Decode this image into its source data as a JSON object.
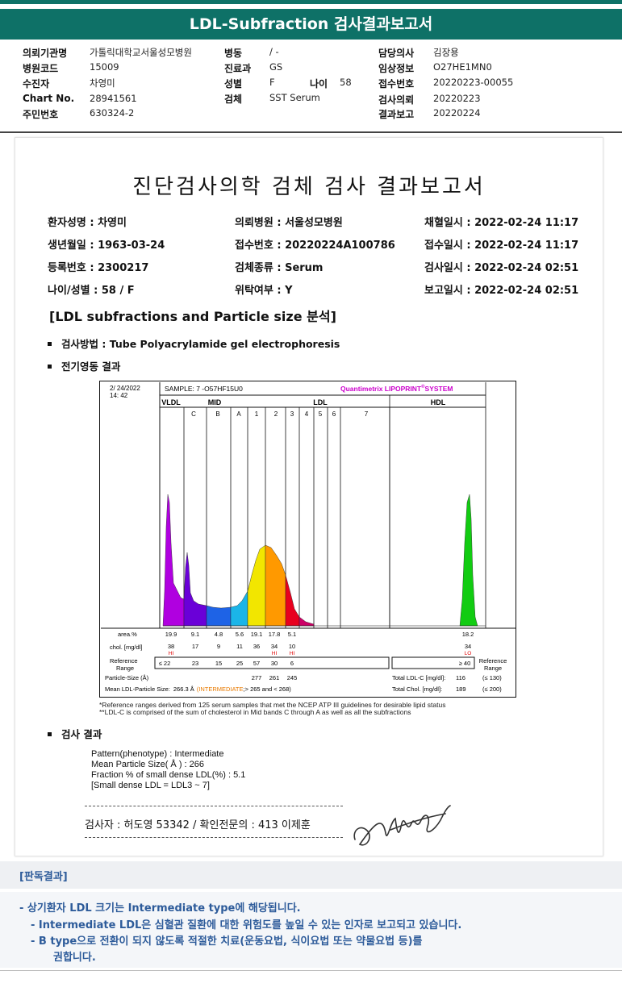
{
  "header": {
    "title": "LDL-Subfraction 검사결과보고서"
  },
  "info": {
    "req_inst_label": "의뢰기관명",
    "req_inst": "가톨릭대학교서울성모병원",
    "hosp_code_label": "병원코드",
    "hosp_code": "15009",
    "patient_label": "수진자",
    "patient": "차영미",
    "chart_label": "Chart No.",
    "chart_no": "28941561",
    "rrn_label": "주민번호",
    "rrn": "630324-2",
    "ward_label": "병동",
    "ward": "/ -",
    "dept_label": "진료과",
    "dept": "GS",
    "sex_label": "성별",
    "sex": "F",
    "age_label": "나이",
    "age": "58",
    "specimen_label": "검체",
    "specimen": "SST Serum",
    "doctor_label": "담당의사",
    "doctor": "김장용",
    "clinical_label": "임상정보",
    "clinical": "O27HE1MN0",
    "receipt_label": "접수번호",
    "receipt": "20220223-00055",
    "req_date_label": "검사의뢰",
    "req_date": "20220223",
    "report_date_label": "결과보고",
    "report_date": "20220224"
  },
  "report": {
    "title": "진단검사의학 검체 검사 결과보고서",
    "fields": {
      "name": "환자성명 : 차영미",
      "dob": "생년월일 : 1963-03-24",
      "reg": "등록번호 : 2300217",
      "agesex": "나이/성별 : 58 / F",
      "hospital": "의뢰병원 : 서울성모병원",
      "accession": "접수번호 : 20220224A100786",
      "specimen": "검체종류 : Serum",
      "outsourced": "위탁여부 : Y",
      "collected": "채혈일시 : 2022-02-24 11:17",
      "received": "접수일시 : 2022-02-24 11:17",
      "tested": "검사일시 : 2022-02-24 02:51",
      "reported": "보고일시 : 2022-02-24 02:51"
    },
    "section_title": "[LDL subfractions and Particle size 분석]",
    "method": "검사방법 : Tube Polyacrylamide gel electrophoresis",
    "electro_label": "전기영동 결과",
    "footnote1": "*Reference ranges derived from 125 serum samples that met the NCEP ATP III guidelines for desirable lipid status",
    "footnote2": "**LDL-C is comprised of the sum of cholesterol in Mid bands C through A as well as all the subfractions",
    "result_label": "검사 결과",
    "result_lines": [
      "Pattern(phenotype) : Intermediate",
      "Mean Particle Size( Å ) : 266",
      "Fraction % of small dense LDL(%) : 5.1",
      "[Small dense LDL = LDL3 ~ 7]"
    ],
    "signer": "검사자 : 허도영  53342  /  확인전문의 : 413  이제훈"
  },
  "chart_data": {
    "type": "area",
    "date": "2/ 24/2022",
    "time": "14: 42",
    "sample": "SAMPLE:   7 -O57HF15U0",
    "brand": "Quantimetrix LIPOPRINT",
    "brand_reg": "®",
    "brand_tail": "SYSTEM",
    "regions": [
      "VLDL",
      "MID",
      "LDL",
      "HDL"
    ],
    "bands": [
      "C",
      "B",
      "A",
      "1",
      "2",
      "3",
      "4",
      "5",
      "6",
      "7"
    ],
    "area_label": "area.%",
    "area_values": [
      "19.9",
      "9.1",
      "4.8",
      "5.6",
      "19.1",
      "17.8",
      "5.1",
      "18.2"
    ],
    "chol_label": "chol. [mg/dl]",
    "chol_values": [
      "38",
      "17",
      "9",
      "11",
      "36",
      "34",
      "10",
      "34"
    ],
    "chol_flags": [
      "HI",
      "",
      "",
      "",
      "",
      "HI",
      "HI",
      "LO"
    ],
    "ref_label_1": "Reference",
    "ref_label_2": "Range",
    "ref_values": [
      "≤ 22",
      "23",
      "15",
      "25",
      "57",
      "30",
      "6",
      "≥ 40"
    ],
    "particle_label": "Particle-Size (Å)",
    "particle_values": [
      "277",
      "261",
      "245"
    ],
    "mean_label": "Mean LDL-Particle Size:",
    "mean_value": "266.3 Å",
    "mean_class": "(INTERMEDIATE",
    "mean_tail": ";> 265 and < 268)",
    "total_ldl_label": "Total LDL-C [mg/dl]:",
    "total_ldl": "116",
    "total_ldl_ref": "(≤ 130)",
    "total_chol_label": "Total Chol. [mg/dl]:",
    "total_chol": "189",
    "total_chol_ref": "(≤ 200)",
    "colors": {
      "vldl": "#b000e0",
      "midc": "#6a00d8",
      "midb": "#1e63e6",
      "mida": "#1bb5e8",
      "ldl1": "#f2e600",
      "ldl2": "#ff9900",
      "ldl3": "#e8001e",
      "ldl4": "#cc0066",
      "hdl": "#12cc12"
    }
  },
  "verdict": {
    "title": "[판독결과]",
    "line1": "-  상기환자 LDL 크기는 Intermediate type에 해당됩니다.",
    "line2": "-  Intermediate LDL은 심혈관 질환에 대한 위험도를 높일 수 있는 인자로 보고되고 있습니다.",
    "line3": "-  B type으로 전환이 되지 않도록 적절한 치료(운동요법, 식이요법 또는 약물요법 등)를",
    "line4": "권합니다."
  }
}
